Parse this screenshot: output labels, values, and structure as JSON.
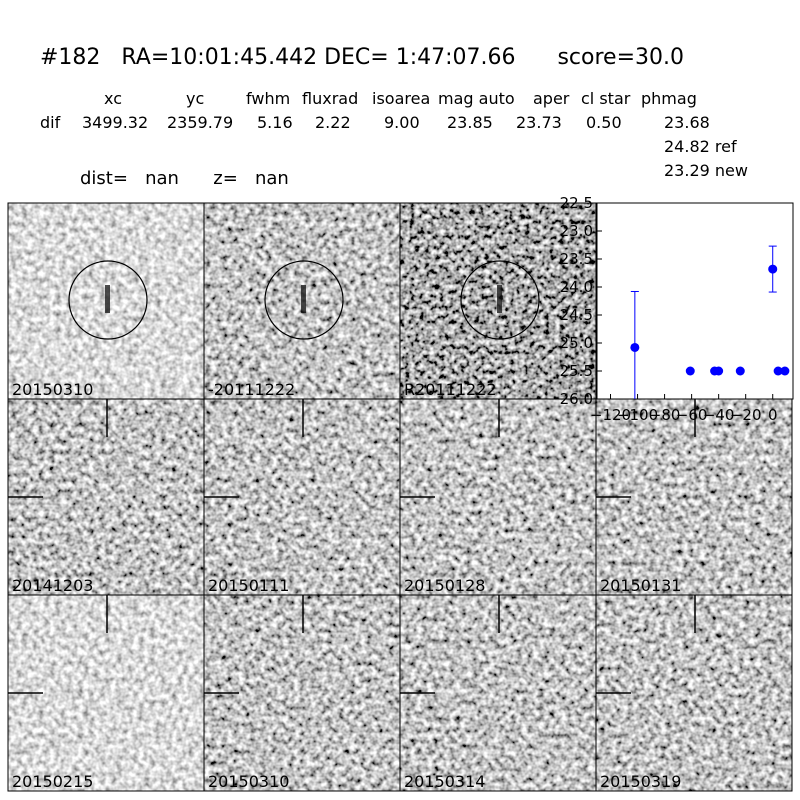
{
  "header": {
    "title": "#182   RA=10:01:45.442 DEC= 1:47:07.66      score=30.0",
    "columns": [
      "xc",
      "yc",
      "fwhm",
      "fluxrad",
      "isoarea",
      "mag auto",
      "aper",
      "cl star",
      "phmag"
    ],
    "row": [
      "dif",
      "3499.32",
      "2359.79",
      "5.16",
      "2.22",
      "9.00",
      "23.85",
      "23.73",
      "0.50",
      "23.68"
    ],
    "ref": "24.82 ref",
    "new": "23.29 new",
    "dist": "dist=   nan      z=   nan"
  },
  "panels": [
    {
      "label": "20150310"
    },
    {
      "label": "-20111222"
    },
    {
      "label": "R20111222"
    },
    {
      "label": "20141203"
    },
    {
      "label": "20150111"
    },
    {
      "label": "20150128"
    },
    {
      "label": "20150131"
    },
    {
      "label": "20150215"
    },
    {
      "label": "20150310",
      "color": "#ff0000"
    },
    {
      "label": "20150314"
    },
    {
      "label": "20150319"
    }
  ],
  "chart_data": {
    "type": "errorbar",
    "color": "#0000ff",
    "x": [
      -102,
      -61,
      -43,
      -40,
      -24,
      0,
      4,
      9
    ],
    "values": [
      25.08,
      25.5,
      25.5,
      25.5,
      25.5,
      23.68,
      25.5,
      25.5
    ],
    "errors": [
      1.0,
      null,
      null,
      null,
      null,
      0.41,
      null,
      null
    ],
    "xlim": [
      -130,
      15
    ],
    "ylim": [
      22.5,
      26.0
    ],
    "y_inverted": true,
    "xticks": [
      {
        "value": -120,
        "label": "−120"
      },
      {
        "value": -100,
        "label": "−100"
      },
      {
        "value": -80,
        "label": "−80"
      },
      {
        "value": -60,
        "label": "−60"
      },
      {
        "value": -40,
        "label": "−40"
      },
      {
        "value": -20,
        "label": "−20"
      },
      0
    ],
    "yticks": [
      22.5,
      {
        "value": 23,
        "label": "23.0"
      },
      23.5,
      {
        "value": 24,
        "label": "24.0"
      },
      24.5,
      {
        "value": 25,
        "label": "25.0"
      },
      25.5,
      {
        "value": 26,
        "label": "26.0"
      }
    ]
  }
}
